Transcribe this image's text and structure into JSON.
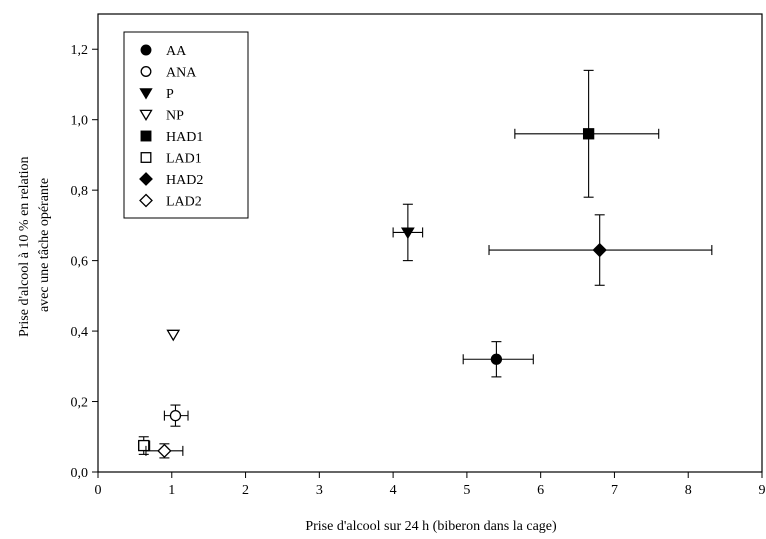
{
  "chart_data": {
    "type": "scatter",
    "title": "",
    "xlabel": "Prise d'alcool sur 24 h (biberon dans la cage)",
    "ylabel_lines": [
      "Prise d'alcool à 10 % en relation",
      "avec une tâche opérante"
    ],
    "xlim": [
      0,
      9
    ],
    "ylim": [
      0,
      1.3
    ],
    "x_ticks": [
      "0",
      "1",
      "2",
      "3",
      "4",
      "5",
      "6",
      "7",
      "8",
      "9"
    ],
    "y_ticks": [
      "0,0",
      "0,2",
      "0,4",
      "0,6",
      "0,8",
      "1,0",
      "1,2"
    ],
    "y_tick_values": [
      0,
      0.2,
      0.4,
      0.6,
      0.8,
      1.0,
      1.2
    ],
    "x_tick_values": [
      0,
      1,
      2,
      3,
      4,
      5,
      6,
      7,
      8,
      9
    ],
    "legend_position": "top-left",
    "series": [
      {
        "name": "AA",
        "marker": "circle",
        "filled": true,
        "x": 5.4,
        "y": 0.32,
        "xerr": [
          4.95,
          5.9
        ],
        "yerr": [
          0.27,
          0.37
        ]
      },
      {
        "name": "ANA",
        "marker": "circle",
        "filled": false,
        "x": 1.05,
        "y": 0.16,
        "xerr": [
          0.9,
          1.22
        ],
        "yerr": [
          0.13,
          0.19
        ]
      },
      {
        "name": "P",
        "marker": "triangle-down",
        "filled": true,
        "x": 4.2,
        "y": 0.68,
        "xerr": [
          4.0,
          4.4
        ],
        "yerr": [
          0.6,
          0.76
        ]
      },
      {
        "name": "NP",
        "marker": "triangle-down",
        "filled": false,
        "x": 1.02,
        "y": 0.39,
        "xerr": null,
        "yerr": null
      },
      {
        "name": "HAD1",
        "marker": "square",
        "filled": true,
        "x": 6.65,
        "y": 0.96,
        "xerr": [
          5.65,
          7.6
        ],
        "yerr": [
          0.78,
          1.14
        ]
      },
      {
        "name": "LAD1",
        "marker": "square",
        "filled": false,
        "x": 0.62,
        "y": 0.075,
        "xerr": [
          0.55,
          0.7
        ],
        "yerr": [
          0.05,
          0.1
        ]
      },
      {
        "name": "HAD2",
        "marker": "diamond",
        "filled": true,
        "x": 6.8,
        "y": 0.63,
        "xerr": [
          5.3,
          8.32
        ],
        "yerr": [
          0.53,
          0.73
        ]
      },
      {
        "name": "LAD2",
        "marker": "diamond",
        "filled": false,
        "x": 0.9,
        "y": 0.06,
        "xerr": [
          0.65,
          1.15
        ],
        "yerr": [
          0.04,
          0.08
        ]
      }
    ]
  }
}
